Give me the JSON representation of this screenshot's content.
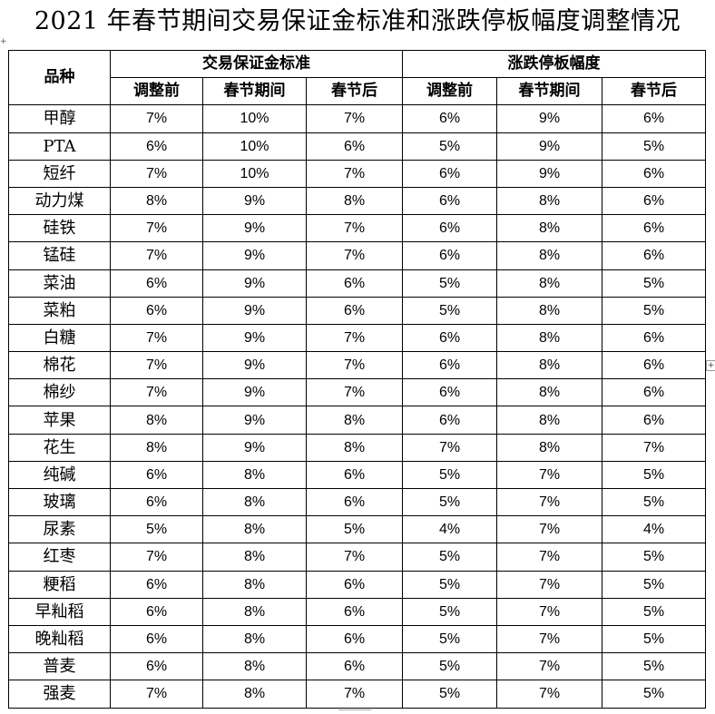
{
  "title": "2021 年春节期间交易保证金标准和涨跌停板幅度调整情况",
  "handles": {
    "left": "+",
    "right": "+"
  },
  "header": {
    "variety": "品种",
    "group1": "交易保证金标准",
    "group2": "涨跌停板幅度",
    "sub": [
      "调整前",
      "春节期间",
      "春节后",
      "调整前",
      "春节期间",
      "春节后"
    ]
  },
  "rows": [
    {
      "name": "甲醇",
      "values": [
        "7%",
        "10%",
        "7%",
        "6%",
        "9%",
        "6%"
      ]
    },
    {
      "name": "PTA",
      "values": [
        "6%",
        "10%",
        "6%",
        "5%",
        "9%",
        "5%"
      ]
    },
    {
      "name": "短纤",
      "values": [
        "7%",
        "10%",
        "7%",
        "6%",
        "9%",
        "6%"
      ]
    },
    {
      "name": "动力煤",
      "values": [
        "8%",
        "9%",
        "8%",
        "6%",
        "8%",
        "6%"
      ]
    },
    {
      "name": "硅铁",
      "values": [
        "7%",
        "9%",
        "7%",
        "6%",
        "8%",
        "6%"
      ]
    },
    {
      "name": "锰硅",
      "values": [
        "7%",
        "9%",
        "7%",
        "6%",
        "8%",
        "6%"
      ]
    },
    {
      "name": "菜油",
      "values": [
        "6%",
        "9%",
        "6%",
        "5%",
        "8%",
        "5%"
      ]
    },
    {
      "name": "菜粕",
      "values": [
        "6%",
        "9%",
        "6%",
        "5%",
        "8%",
        "5%"
      ]
    },
    {
      "name": "白糖",
      "values": [
        "7%",
        "9%",
        "7%",
        "6%",
        "8%",
        "6%"
      ]
    },
    {
      "name": "棉花",
      "values": [
        "7%",
        "9%",
        "7%",
        "6%",
        "8%",
        "6%"
      ]
    },
    {
      "name": "棉纱",
      "values": [
        "7%",
        "9%",
        "7%",
        "6%",
        "8%",
        "6%"
      ]
    },
    {
      "name": "苹果",
      "values": [
        "8%",
        "9%",
        "8%",
        "6%",
        "8%",
        "6%"
      ]
    },
    {
      "name": "花生",
      "values": [
        "8%",
        "9%",
        "8%",
        "7%",
        "8%",
        "7%"
      ]
    },
    {
      "name": "纯碱",
      "values": [
        "6%",
        "8%",
        "6%",
        "5%",
        "7%",
        "5%"
      ]
    },
    {
      "name": "玻璃",
      "values": [
        "6%",
        "8%",
        "6%",
        "5%",
        "7%",
        "5%"
      ]
    },
    {
      "name": "尿素",
      "values": [
        "5%",
        "8%",
        "5%",
        "4%",
        "7%",
        "4%"
      ]
    },
    {
      "name": "红枣",
      "values": [
        "7%",
        "8%",
        "7%",
        "5%",
        "7%",
        "5%"
      ]
    },
    {
      "name": "粳稻",
      "values": [
        "6%",
        "8%",
        "6%",
        "5%",
        "7%",
        "5%"
      ]
    },
    {
      "name": "早籼稻",
      "values": [
        "6%",
        "8%",
        "6%",
        "5%",
        "7%",
        "5%"
      ]
    },
    {
      "name": "晚籼稻",
      "values": [
        "6%",
        "8%",
        "6%",
        "5%",
        "7%",
        "5%"
      ]
    },
    {
      "name": "普麦",
      "values": [
        "6%",
        "8%",
        "6%",
        "5%",
        "7%",
        "5%"
      ]
    },
    {
      "name": "强麦",
      "values": [
        "7%",
        "8%",
        "7%",
        "5%",
        "7%",
        "5%"
      ]
    }
  ]
}
